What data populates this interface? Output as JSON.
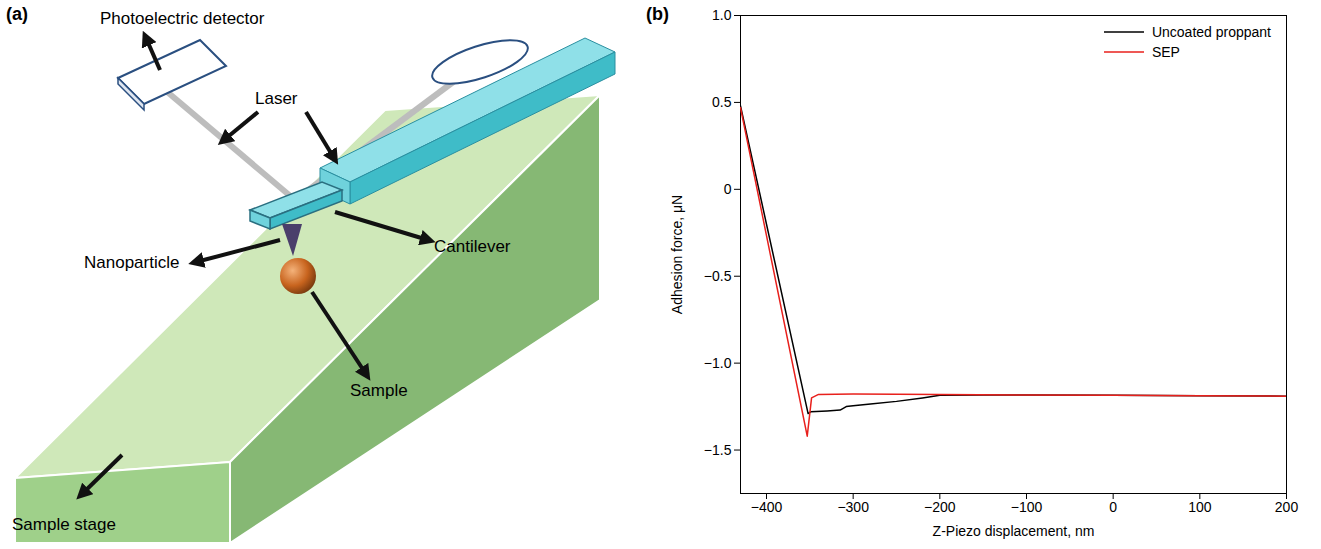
{
  "diagram": {
    "panel": "(a)",
    "labels": {
      "detector": "Photoelectric detector",
      "laser": "Laser",
      "nanoparticle": "Nanoparticle",
      "cantilever": "Cantilever",
      "sample": "Sample",
      "stage": "Sample stage"
    }
  },
  "chart_data": {
    "type": "line",
    "panel": "(b)",
    "xlabel": "Z-Piezo displacement, nm",
    "ylabel": "Adhesion force, μN",
    "xlim": [
      -430,
      200
    ],
    "xticks": [
      {
        "value": -400,
        "label": "−400"
      },
      {
        "value": -300,
        "label": "−300"
      },
      {
        "value": -200,
        "label": "−200"
      },
      {
        "value": -100,
        "label": "−100"
      },
      0,
      100,
      200
    ],
    "ylim": [
      -1.75,
      1.0
    ],
    "yticks": [
      {
        "value": -1.5,
        "label": "−1.5"
      },
      {
        "value": -1.0,
        "label": "−1.0"
      },
      {
        "value": -0.5,
        "label": "−0.5"
      },
      0,
      0.5,
      {
        "value": 1.0,
        "label": "1.0"
      }
    ],
    "legend": "top-right",
    "series": [
      {
        "name": "Uncoated proppant",
        "color": "#000000",
        "x": [
          -430,
          -352,
          -349,
          -330,
          -315,
          -308,
          -300,
          -280,
          -250,
          -220,
          -200,
          -150,
          -100,
          0,
          100,
          200
        ],
        "values": [
          0.48,
          -1.29,
          -1.28,
          -1.275,
          -1.27,
          -1.25,
          -1.245,
          -1.235,
          -1.22,
          -1.2,
          -1.185,
          -1.183,
          -1.183,
          -1.185,
          -1.187,
          -1.19
        ]
      },
      {
        "name": "SEP",
        "color": "#e8201c",
        "x": [
          -430,
          -353,
          -348,
          -340,
          -300,
          -200,
          -100,
          0,
          100,
          200
        ],
        "values": [
          0.47,
          -1.42,
          -1.2,
          -1.18,
          -1.178,
          -1.18,
          -1.183,
          -1.185,
          -1.187,
          -1.19
        ]
      }
    ]
  }
}
